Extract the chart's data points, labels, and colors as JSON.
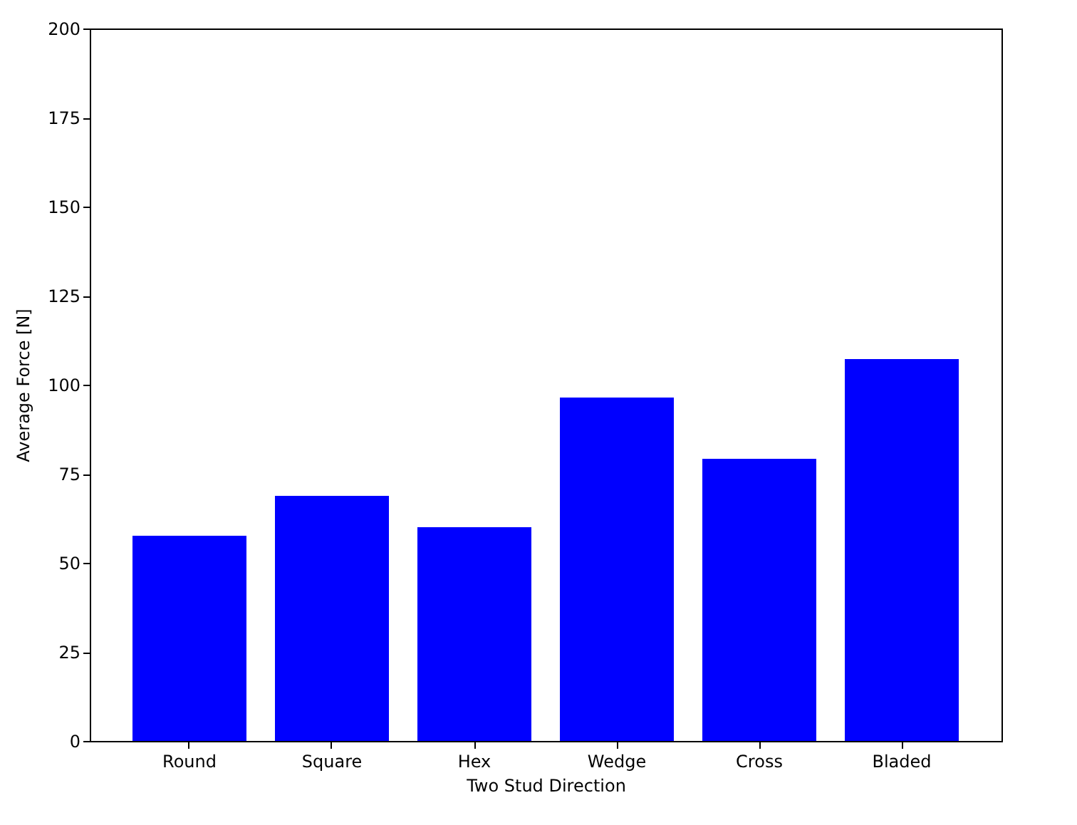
{
  "chart_data": {
    "type": "bar",
    "xlabel": "Two Stud Direction",
    "ylabel": "Average Force [N]",
    "categories": [
      "Round",
      "Square",
      "Hex",
      "Wedge",
      "Cross",
      "Bladed"
    ],
    "values": [
      57.6,
      68.8,
      60,
      96.4,
      79.2,
      107.2
    ],
    "color": "#0000ff",
    "ylim": [
      0,
      200
    ],
    "yticks": [
      0,
      25,
      50,
      75,
      100,
      125,
      150,
      175,
      200
    ],
    "grid": false
  }
}
